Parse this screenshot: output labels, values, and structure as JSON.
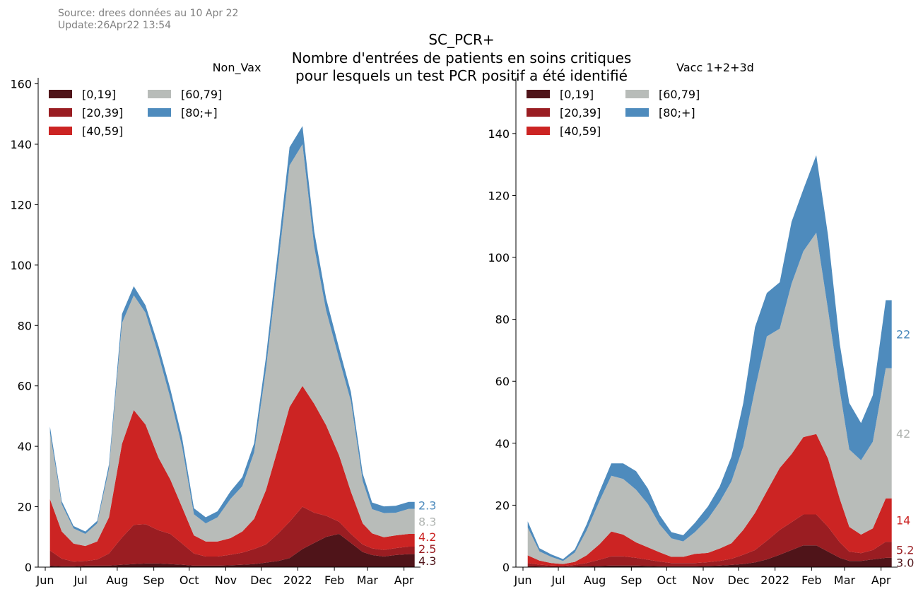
{
  "header": {
    "source": "Source: drees données au 10 Apr 22",
    "update": "Update:26Apr22 13:54",
    "title_line1": "SC_PCR+",
    "title_line2": "Nombre d'entrées de patients en soins critiques",
    "title_line3": "pour lesquels un test PCR positif a été identifié"
  },
  "colors": {
    "0_19": "#4f1419",
    "20_39": "#9a1d22",
    "40_59": "#cc2423",
    "60_79": "#b8bcb9",
    "80_plus": "#4e8bbd",
    "source_text": "#808080"
  },
  "chart_data": [
    {
      "type": "area",
      "title": "Non_Vax",
      "stacked": true,
      "ylim": [
        0,
        162
      ],
      "yticks": [
        0,
        20,
        40,
        60,
        80,
        100,
        120,
        140,
        160
      ],
      "xticks": [
        "Jun",
        "Jul",
        "Aug",
        "Sep",
        "Oct",
        "Nov",
        "Dec",
        "2022",
        "Feb",
        "Mar",
        "Apr"
      ],
      "x": [
        "2021-06-05",
        "2021-06-15",
        "2021-06-25",
        "2021-07-05",
        "2021-07-15",
        "2021-07-25",
        "2021-08-05",
        "2021-08-15",
        "2021-08-25",
        "2021-09-05",
        "2021-09-15",
        "2021-09-25",
        "2021-10-05",
        "2021-10-15",
        "2021-10-25",
        "2021-11-05",
        "2021-11-15",
        "2021-11-25",
        "2021-12-05",
        "2021-12-15",
        "2021-12-25",
        "2022-01-05",
        "2022-01-15",
        "2022-01-25",
        "2022-02-05",
        "2022-02-15",
        "2022-02-25",
        "2022-03-05",
        "2022-03-15",
        "2022-03-25",
        "2022-04-05",
        "2022-04-10"
      ],
      "series": [
        {
          "name": "[0,19]",
          "color": "#4f1419",
          "values": [
            0.5,
            0.3,
            0.3,
            0.5,
            0.5,
            0.5,
            0.8,
            1,
            1.2,
            1.2,
            1,
            0.8,
            0.5,
            0.5,
            0.5,
            0.6,
            0.8,
            1,
            1.5,
            2,
            3,
            6,
            8,
            10,
            11,
            8,
            5,
            4,
            3.5,
            4,
            4.3,
            4.3
          ]
        },
        {
          "name": "[20,39]",
          "color": "#9a1d22",
          "values": [
            5,
            2.5,
            1.5,
            1.5,
            2,
            4,
            9,
            13,
            13,
            11,
            10,
            7,
            4,
            3,
            3,
            3.5,
            4,
            5,
            6,
            9,
            12,
            14,
            10,
            7,
            4,
            3,
            2.5,
            2.2,
            2.2,
            2.3,
            2.5,
            2.5
          ]
        },
        {
          "name": "[40,59]",
          "color": "#cc2423",
          "values": [
            17,
            9,
            6,
            5,
            6,
            12,
            31,
            38,
            33,
            24,
            18,
            12,
            6,
            5,
            5,
            5.5,
            7,
            10,
            18,
            28,
            38,
            40,
            36,
            30,
            22,
            14,
            7,
            5,
            4.2,
            4.2,
            4.2,
            4.2
          ]
        },
        {
          "name": "[60,79]",
          "color": "#b8bcb9",
          "values": [
            22,
            9,
            5,
            4,
            6,
            16,
            40,
            38,
            37,
            34,
            27,
            20,
            7,
            6,
            8,
            13,
            15,
            22,
            40,
            60,
            80,
            80,
            52,
            38,
            32,
            30,
            14,
            8,
            8,
            7.5,
            8.3,
            8.3
          ]
        },
        {
          "name": "[80;+]",
          "color": "#4e8bbd",
          "values": [
            2,
            1,
            0.8,
            0.8,
            0.8,
            1.5,
            3,
            3,
            2.5,
            3,
            3,
            3,
            2,
            2,
            2,
            2.5,
            3,
            3,
            4,
            5,
            6,
            6,
            5,
            4,
            3.5,
            3,
            2.5,
            2.2,
            2.2,
            2.3,
            2.3,
            2.3
          ]
        }
      ],
      "end_labels": [
        "4.3",
        "2.5",
        "4.2",
        "8.3",
        "2.3"
      ]
    },
    {
      "type": "area",
      "title": "Vacc 1+2+3d",
      "stacked": true,
      "ylim": [
        0,
        158
      ],
      "yticks": [
        0,
        20,
        40,
        60,
        80,
        100,
        120,
        140
      ],
      "xticks": [
        "Jun",
        "Jul",
        "Aug",
        "Sep",
        "Oct",
        "Nov",
        "Dec",
        "2022",
        "Feb",
        "Mar",
        "Apr"
      ],
      "x": [
        "2021-06-05",
        "2021-06-15",
        "2021-06-25",
        "2021-07-05",
        "2021-07-15",
        "2021-07-25",
        "2021-08-05",
        "2021-08-15",
        "2021-08-25",
        "2021-09-05",
        "2021-09-15",
        "2021-09-25",
        "2021-10-05",
        "2021-10-15",
        "2021-10-25",
        "2021-11-05",
        "2021-11-15",
        "2021-11-25",
        "2021-12-05",
        "2021-12-15",
        "2021-12-25",
        "2022-01-05",
        "2022-01-15",
        "2022-01-25",
        "2022-02-05",
        "2022-02-15",
        "2022-02-25",
        "2022-03-05",
        "2022-03-15",
        "2022-03-25",
        "2022-04-05",
        "2022-04-10"
      ],
      "series": [
        {
          "name": "[0,19]",
          "color": "#4f1419",
          "values": [
            0.3,
            0.2,
            0.1,
            0.1,
            0.2,
            0.3,
            0.4,
            0.5,
            0.5,
            0.5,
            0.4,
            0.3,
            0.3,
            0.3,
            0.3,
            0.4,
            0.5,
            0.7,
            1,
            1.5,
            2.5,
            4,
            5.5,
            7,
            7,
            5,
            3,
            2,
            2,
            2.5,
            3,
            3
          ]
        },
        {
          "name": "[20,39]",
          "color": "#9a1d22",
          "values": [
            1,
            0.6,
            0.4,
            0.3,
            0.5,
            1,
            2,
            3,
            3,
            2.5,
            2,
            1.5,
            1,
            1,
            1,
            1.2,
            1.5,
            2,
            3,
            4,
            6,
            8,
            9,
            10,
            10,
            8,
            5,
            3,
            2.5,
            3,
            5.2,
            5.2
          ]
        },
        {
          "name": "[40,59]",
          "color": "#cc2423",
          "values": [
            2.5,
            1.3,
            0.8,
            0.6,
            1,
            2.5,
            5,
            8,
            7,
            5,
            4,
            3,
            2,
            2,
            3,
            3,
            4,
            5,
            8,
            12,
            16,
            20,
            22,
            25,
            26,
            22,
            14,
            8,
            6,
            7,
            14,
            14
          ]
        },
        {
          "name": "[60,79]",
          "color": "#b8bcb9",
          "values": [
            9,
            3,
            2,
            1,
            3,
            8,
            14,
            18,
            18,
            17,
            14,
            9,
            6,
            5,
            7,
            11,
            15,
            20,
            27,
            40,
            50,
            45,
            55,
            60,
            65,
            48,
            35,
            25,
            24,
            28,
            42,
            42
          ]
        },
        {
          "name": "[80;+]",
          "color": "#4e8bbd",
          "values": [
            2,
            1,
            0.8,
            0.6,
            1,
            2,
            3,
            4,
            5,
            6,
            5,
            3,
            2,
            2,
            3,
            4,
            5,
            8,
            14,
            20,
            14,
            15,
            20,
            20,
            25,
            24,
            15,
            15,
            12,
            15,
            22,
            22
          ]
        }
      ],
      "end_labels": [
        "3.0",
        "5.2",
        "14",
        "42",
        "22"
      ]
    }
  ]
}
